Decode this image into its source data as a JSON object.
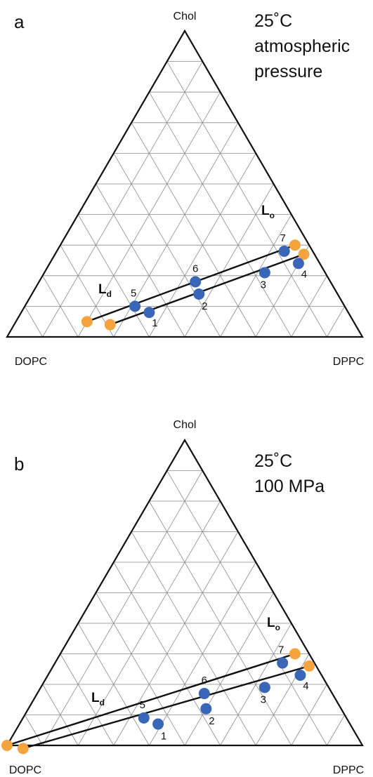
{
  "chart_data": [
    {
      "type": "scatter",
      "panel": "a",
      "conditions": [
        "25˚C",
        "atmospheric",
        "pressure"
      ],
      "vertices": {
        "top": "Chol",
        "left": "DOPC",
        "right": "DPPC"
      },
      "grid_divisions": 10,
      "phase_labels": [
        {
          "main": "L",
          "sub": "d"
        },
        {
          "main": "L",
          "sub": "o"
        }
      ],
      "points": [
        {
          "label": "1",
          "dppc": 0.36,
          "chol": 0.08
        },
        {
          "label": "2",
          "dppc": 0.47,
          "chol": 0.14
        },
        {
          "label": "3",
          "dppc": 0.62,
          "chol": 0.21
        },
        {
          "label": "4",
          "dppc": 0.7,
          "chol": 0.24
        },
        {
          "label": "5",
          "dppc": 0.31,
          "chol": 0.1
        },
        {
          "label": "6",
          "dppc": 0.44,
          "chol": 0.18
        },
        {
          "label": "7",
          "dppc": 0.64,
          "chol": 0.28
        }
      ],
      "tie_lines": [
        {
          "start": {
            "dppc": 0.2,
            "chol": 0.05
          },
          "end": {
            "dppc": 0.66,
            "chol": 0.3
          }
        },
        {
          "start": {
            "dppc": 0.27,
            "chol": 0.04
          },
          "end": {
            "dppc": 0.7,
            "chol": 0.27
          }
        }
      ],
      "colors": {
        "blue": "#3a66b8",
        "orange": "#f5a33c"
      }
    },
    {
      "type": "scatter",
      "panel": "b",
      "conditions": [
        "25˚C",
        "100 MPa"
      ],
      "vertices": {
        "top": "Chol",
        "left": "DOPC",
        "right": "DPPC"
      },
      "grid_divisions": 10,
      "phase_labels": [
        {
          "main": "L",
          "sub": "d"
        },
        {
          "main": "L",
          "sub": "o"
        }
      ],
      "points": [
        {
          "label": "1",
          "dppc": 0.39,
          "chol": 0.07
        },
        {
          "label": "2",
          "dppc": 0.5,
          "chol": 0.12
        },
        {
          "label": "3",
          "dppc": 0.63,
          "chol": 0.19
        },
        {
          "label": "4",
          "dppc": 0.71,
          "chol": 0.23
        },
        {
          "label": "5",
          "dppc": 0.34,
          "chol": 0.09
        },
        {
          "label": "6",
          "dppc": 0.47,
          "chol": 0.17
        },
        {
          "label": "7",
          "dppc": 0.64,
          "chol": 0.27
        }
      ],
      "tie_lines": [
        {
          "start": {
            "dppc": 0.0,
            "chol": 0.0
          },
          "end": {
            "dppc": 0.66,
            "chol": 0.3
          }
        },
        {
          "start": {
            "dppc": 0.05,
            "chol": -0.01
          },
          "end": {
            "dppc": 0.72,
            "chol": 0.26
          }
        }
      ],
      "colors": {
        "blue": "#3a66b8",
        "orange": "#f5a33c"
      }
    }
  ]
}
